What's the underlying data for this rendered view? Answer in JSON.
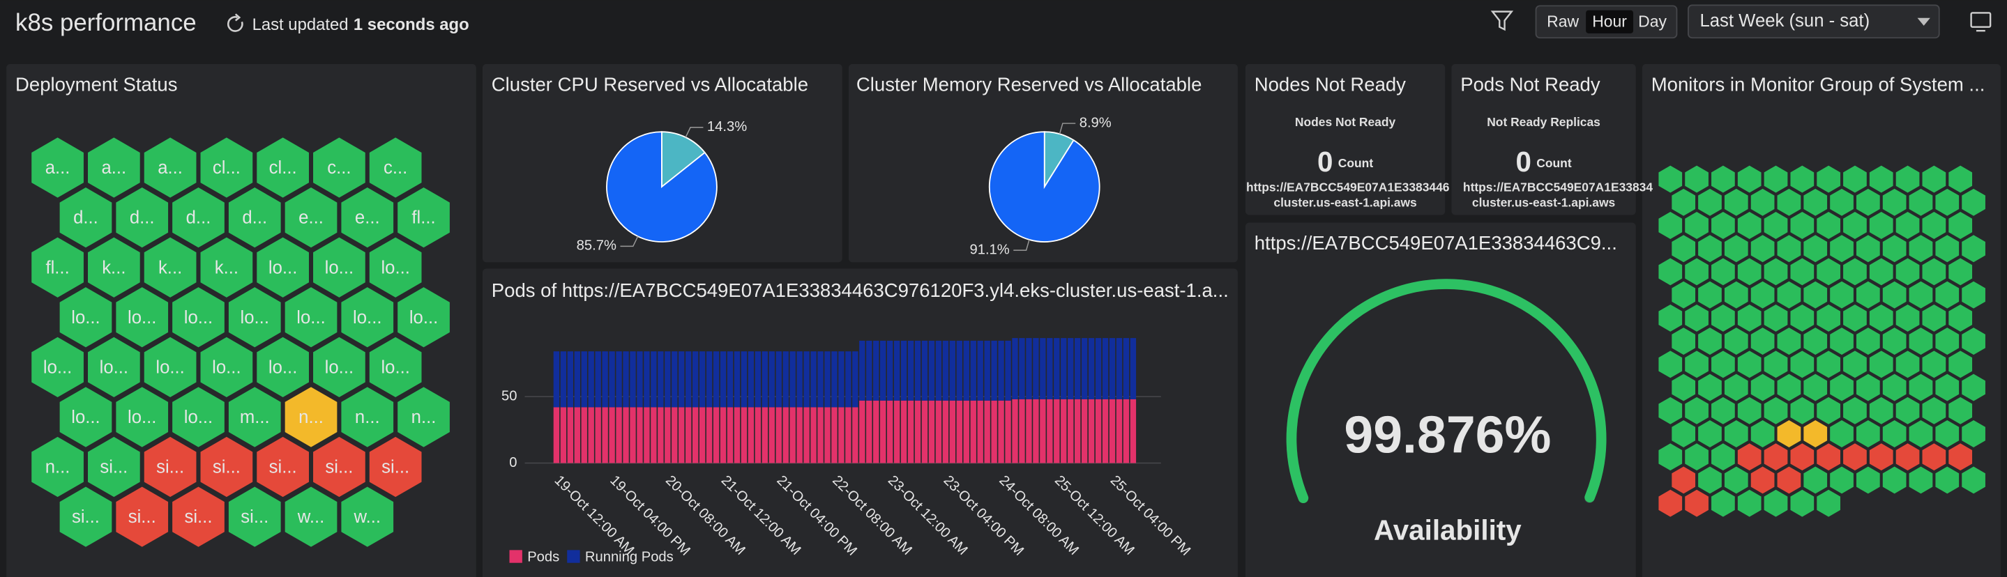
{
  "header": {
    "title": "k8s performance",
    "last_updated_label": "Last updated",
    "last_updated_value": "1 seconds ago",
    "range_buttons": [
      "Raw",
      "Hour",
      "Day"
    ],
    "period": "Last Week (sun - sat)"
  },
  "deployment_status": {
    "title": "Deployment Status",
    "rows": [
      [
        {
          "label": "a...",
          "color": "#2bbd5b"
        },
        {
          "label": "a...",
          "color": "#2bbd5b"
        },
        {
          "label": "a...",
          "color": "#2bbd5b"
        },
        {
          "label": "cl...",
          "color": "#2bbd5b"
        },
        {
          "label": "cl...",
          "color": "#2bbd5b"
        },
        {
          "label": "c...",
          "color": "#2bbd5b"
        },
        {
          "label": "c...",
          "color": "#2bbd5b"
        }
      ],
      [
        {
          "label": "d...",
          "color": "#2bbd5b"
        },
        {
          "label": "d...",
          "color": "#2bbd5b"
        },
        {
          "label": "d...",
          "color": "#2bbd5b"
        },
        {
          "label": "d...",
          "color": "#2bbd5b"
        },
        {
          "label": "e...",
          "color": "#2bbd5b"
        },
        {
          "label": "e...",
          "color": "#2bbd5b"
        },
        {
          "label": "fl...",
          "color": "#2bbd5b"
        }
      ],
      [
        {
          "label": "fl...",
          "color": "#2bbd5b"
        },
        {
          "label": "k...",
          "color": "#2bbd5b"
        },
        {
          "label": "k...",
          "color": "#2bbd5b"
        },
        {
          "label": "k...",
          "color": "#2bbd5b"
        },
        {
          "label": "lo...",
          "color": "#2bbd5b"
        },
        {
          "label": "lo...",
          "color": "#2bbd5b"
        },
        {
          "label": "lo...",
          "color": "#2bbd5b"
        }
      ],
      [
        {
          "label": "lo...",
          "color": "#2bbd5b"
        },
        {
          "label": "lo...",
          "color": "#2bbd5b"
        },
        {
          "label": "lo...",
          "color": "#2bbd5b"
        },
        {
          "label": "lo...",
          "color": "#2bbd5b"
        },
        {
          "label": "lo...",
          "color": "#2bbd5b"
        },
        {
          "label": "lo...",
          "color": "#2bbd5b"
        },
        {
          "label": "lo...",
          "color": "#2bbd5b"
        }
      ],
      [
        {
          "label": "lo...",
          "color": "#2bbd5b"
        },
        {
          "label": "lo...",
          "color": "#2bbd5b"
        },
        {
          "label": "lo...",
          "color": "#2bbd5b"
        },
        {
          "label": "lo...",
          "color": "#2bbd5b"
        },
        {
          "label": "lo...",
          "color": "#2bbd5b"
        },
        {
          "label": "lo...",
          "color": "#2bbd5b"
        },
        {
          "label": "lo...",
          "color": "#2bbd5b"
        }
      ],
      [
        {
          "label": "lo...",
          "color": "#2bbd5b"
        },
        {
          "label": "lo...",
          "color": "#2bbd5b"
        },
        {
          "label": "lo...",
          "color": "#2bbd5b"
        },
        {
          "label": "m...",
          "color": "#2bbd5b"
        },
        {
          "label": "n...",
          "color": "#f3b92a"
        },
        {
          "label": "n...",
          "color": "#2bbd5b"
        },
        {
          "label": "n...",
          "color": "#2bbd5b"
        }
      ],
      [
        {
          "label": "n...",
          "color": "#2bbd5b"
        },
        {
          "label": "si...",
          "color": "#2bbd5b"
        },
        {
          "label": "si...",
          "color": "#e5493a"
        },
        {
          "label": "si...",
          "color": "#e5493a"
        },
        {
          "label": "si...",
          "color": "#e5493a"
        },
        {
          "label": "si...",
          "color": "#e5493a"
        },
        {
          "label": "si...",
          "color": "#e5493a"
        }
      ],
      [
        {
          "label": "si...",
          "color": "#2bbd5b"
        },
        {
          "label": "si...",
          "color": "#e5493a"
        },
        {
          "label": "si...",
          "color": "#e5493a"
        },
        {
          "label": "si...",
          "color": "#2bbd5b"
        },
        {
          "label": "w...",
          "color": "#2bbd5b"
        },
        {
          "label": "w...",
          "color": "#2bbd5b"
        }
      ]
    ]
  },
  "chart_data": [
    {
      "type": "pie",
      "title": "Cluster CPU Reserved vs Allocatable",
      "values": [
        14.3,
        85.7
      ],
      "value_labels": [
        "14.3%",
        "85.7%"
      ],
      "colors": [
        "#4cb6c4",
        "#1465f6"
      ]
    },
    {
      "type": "pie",
      "title": "Cluster Memory Reserved vs Allocatable",
      "values": [
        8.9,
        91.1
      ],
      "value_labels": [
        "8.9%",
        "91.1%"
      ],
      "colors": [
        "#4cb6c4",
        "#1465f6"
      ]
    },
    {
      "type": "bar",
      "stacked": true,
      "title": "Pods of https://EA7BCC549E07A1E33834463C976120F3.yl4.eks-cluster.us-east-1.a...",
      "categories": [
        "19-Oct 12:00 AM",
        null,
        null,
        null,
        null,
        null,
        null,
        null,
        "19-Oct 04:00 PM",
        null,
        null,
        null,
        null,
        null,
        null,
        null,
        "20-Oct 08:00 AM",
        null,
        null,
        null,
        null,
        null,
        null,
        null,
        "21-Oct 12:00 AM",
        null,
        null,
        null,
        null,
        null,
        null,
        null,
        "21-Oct 04:00 PM",
        null,
        null,
        null,
        null,
        null,
        null,
        null,
        "22-Oct 08:00 AM",
        null,
        null,
        null,
        null,
        null,
        null,
        null,
        "23-Oct 12:00 AM",
        null,
        null,
        null,
        null,
        null,
        null,
        null,
        "23-Oct 04:00 PM",
        null,
        null,
        null,
        null,
        null,
        null,
        null,
        "24-Oct 08:00 AM",
        null,
        null,
        null,
        null,
        null,
        null,
        null,
        "25-Oct 12:00 AM",
        null,
        null,
        null,
        null,
        null,
        null,
        null,
        "25-Oct 04:00 PM",
        null,
        null,
        null
      ],
      "series": [
        {
          "name": "Pods",
          "color": "#e3326a",
          "values": [
            42,
            42,
            42,
            42,
            42,
            42,
            42,
            42,
            42,
            42,
            42,
            42,
            42,
            42,
            42,
            42,
            42,
            42,
            42,
            42,
            42,
            42,
            42,
            42,
            42,
            42,
            42,
            42,
            42,
            42,
            42,
            42,
            42,
            42,
            42,
            42,
            42,
            42,
            42,
            42,
            42,
            42,
            42,
            42,
            47,
            47,
            47,
            47,
            47,
            47,
            47,
            47,
            47,
            47,
            47,
            47,
            47,
            47,
            47,
            47,
            47,
            47,
            47,
            47,
            47,
            47,
            48,
            48,
            48,
            48,
            48,
            48,
            48,
            48,
            48,
            48,
            48,
            48,
            48,
            48,
            48,
            48,
            48,
            48
          ]
        },
        {
          "name": "Running Pods",
          "color": "#112e9c",
          "values": [
            42,
            42,
            42,
            42,
            42,
            42,
            42,
            42,
            42,
            42,
            42,
            42,
            42,
            42,
            42,
            42,
            42,
            42,
            42,
            42,
            42,
            42,
            42,
            42,
            42,
            42,
            42,
            42,
            42,
            42,
            42,
            42,
            42,
            42,
            42,
            42,
            42,
            42,
            42,
            42,
            42,
            42,
            42,
            42,
            45,
            45,
            45,
            45,
            45,
            45,
            45,
            45,
            45,
            45,
            45,
            45,
            45,
            45,
            45,
            45,
            45,
            45,
            45,
            45,
            45,
            45,
            46,
            46,
            46,
            46,
            46,
            46,
            46,
            46,
            46,
            46,
            46,
            46,
            46,
            46,
            46,
            46,
            46,
            46
          ]
        }
      ],
      "ylim": [
        0,
        100
      ],
      "yticks": [
        0,
        50
      ],
      "grid": true,
      "legend": "bottom-left"
    },
    {
      "type": "gauge",
      "title": "https://EA7BCC549E07A1E33834463C9...",
      "value": 99.876,
      "value_label": "99.876%",
      "label": "Availability",
      "ylim": [
        0,
        100
      ],
      "color": "#2dc163"
    }
  ],
  "nodes_not_ready": {
    "title": "Nodes Not Ready",
    "subtitle": "Nodes Not Ready",
    "value": 0,
    "unit": "Count",
    "source_line1": "https://EA7BCC549E07A1E3383446",
    "source_line2": "cluster.us-east-1.api.aws"
  },
  "pods_not_ready": {
    "title": "Pods Not Ready",
    "subtitle": "Not Ready Replicas",
    "value": 0,
    "unit": "Count",
    "source_line1": "https://EA7BCC549E07A1E33834",
    "source_line2": "cluster.us-east-1.api.aws"
  },
  "monitors": {
    "title": "Monitors in Monitor Group of System ..."
  }
}
